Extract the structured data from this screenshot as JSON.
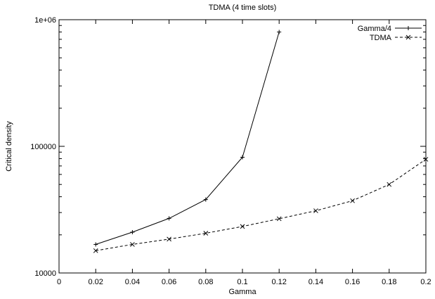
{
  "chart_data": {
    "type": "line",
    "title": "TDMA (4 time slots)",
    "xlabel": "Gamma",
    "ylabel": "Critical density",
    "xlim": [
      0,
      0.2
    ],
    "ylim": [
      10000,
      1000000
    ],
    "yscale": "log",
    "grid": false,
    "legend_position": "top-right",
    "x_ticks": [
      0,
      0.02,
      0.04,
      0.06,
      0.08,
      0.1,
      0.12,
      0.14,
      0.16,
      0.18,
      0.2
    ],
    "x_tick_labels": [
      "0",
      "0.02",
      "0.04",
      "0.06",
      "0.08",
      "0.1",
      "0.12",
      "0.14",
      "0.16",
      "0.18",
      "0.2"
    ],
    "y_ticks": [
      10000,
      100000,
      1000000
    ],
    "y_tick_labels": [
      "10000",
      "100000",
      "1e+06"
    ],
    "series": [
      {
        "name": "Gamma/4",
        "style": "solid",
        "marker": "plus",
        "x": [
          0.02,
          0.04,
          0.06,
          0.08,
          0.1,
          0.12
        ],
        "y": [
          16800,
          21000,
          27000,
          38000,
          82000,
          800000
        ]
      },
      {
        "name": "TDMA",
        "style": "dashed",
        "marker": "cross",
        "x": [
          0.02,
          0.04,
          0.06,
          0.08,
          0.1,
          0.12,
          0.14,
          0.16,
          0.18,
          0.2
        ],
        "y": [
          15000,
          16800,
          18500,
          20600,
          23300,
          26800,
          31000,
          37200,
          50000,
          79000
        ]
      }
    ]
  }
}
